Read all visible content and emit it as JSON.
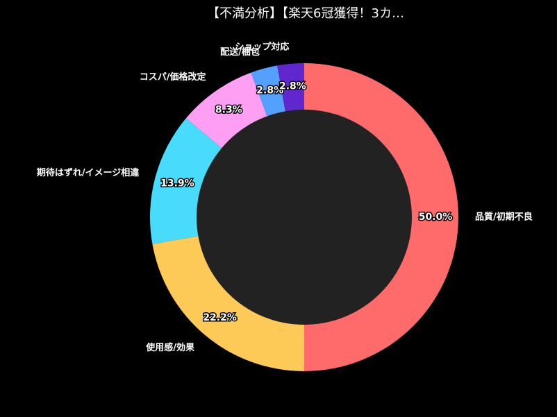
{
  "chart_data": {
    "type": "pie",
    "title": "【不満分析】【楽天6冠獲得！3カ…",
    "categories": [
      "品質/初期不良",
      "使用感/効果",
      "期待はずれ/イメージ相違",
      "コスパ/価格改定",
      "配送/梱包",
      "ショップ対応"
    ],
    "values": [
      50.0,
      22.2,
      13.9,
      8.3,
      2.8,
      2.8
    ],
    "value_labels": [
      "50.0%",
      "22.2%",
      "13.9%",
      "8.3%",
      "2.8%",
      "2.8%"
    ],
    "colors": [
      "#ff6b6b",
      "#feca57",
      "#48dbfb",
      "#ff9ff3",
      "#54a0ff",
      "#5f27cd"
    ],
    "hole_color": "#222222"
  }
}
